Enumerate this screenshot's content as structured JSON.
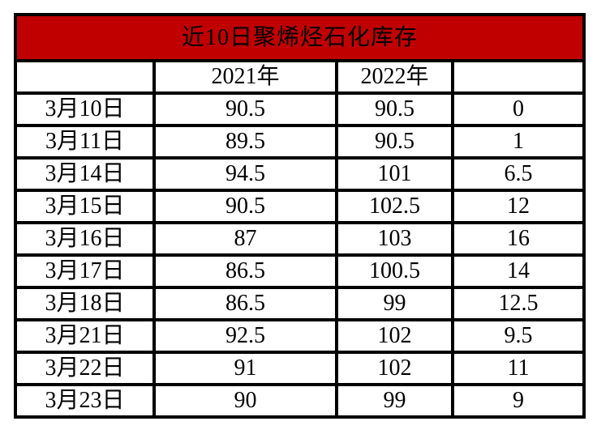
{
  "title": "近10日聚烯烃石化库存",
  "colors": {
    "title_bg": "#c00000",
    "title_text": "#ffffff",
    "border": "#000000",
    "cell_bg": "#ffffff",
    "text": "#000000",
    "page_bg": "#ffffff"
  },
  "chart_data": {
    "type": "table",
    "title": "近10日聚烯烃石化库存",
    "columns": [
      "",
      "2021年",
      "2022年",
      ""
    ],
    "rows": [
      [
        "3月10日",
        "90.5",
        "90.5",
        "0"
      ],
      [
        "3月11日",
        "89.5",
        "90.5",
        "1"
      ],
      [
        "3月14日",
        "94.5",
        "101",
        "6.5"
      ],
      [
        "3月15日",
        "90.5",
        "102.5",
        "12"
      ],
      [
        "3月16日",
        "87",
        "103",
        "16"
      ],
      [
        "3月17日",
        "86.5",
        "100.5",
        "14"
      ],
      [
        "3月18日",
        "86.5",
        "99",
        "12.5"
      ],
      [
        "3月21日",
        "92.5",
        "102",
        "9.5"
      ],
      [
        "3月22日",
        "91",
        "102",
        "11"
      ],
      [
        "3月23日",
        "90",
        "99",
        "9"
      ]
    ]
  }
}
